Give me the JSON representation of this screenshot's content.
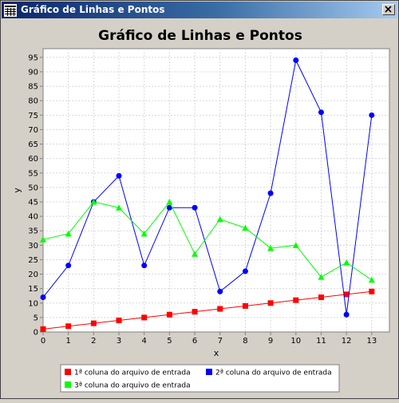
{
  "window": {
    "title": "Gráfico de Linhas e Pontos",
    "close_label": "X"
  },
  "chart_data": {
    "type": "line",
    "title": "Gráfico de Linhas e Pontos",
    "xlabel": "x",
    "ylabel": "y",
    "xlim": [
      0,
      13.7
    ],
    "ylim": [
      0,
      98
    ],
    "x_ticks": [
      "0",
      "1",
      "2",
      "3",
      "4",
      "5",
      "6",
      "7",
      "8",
      "9",
      "10",
      "11",
      "12",
      "13"
    ],
    "y_ticks": [
      "0",
      "5",
      "10",
      "15",
      "20",
      "25",
      "30",
      "35",
      "40",
      "45",
      "50",
      "55",
      "60",
      "65",
      "70",
      "75",
      "80",
      "85",
      "90",
      "95"
    ],
    "grid": true,
    "legend_position": "bottom",
    "series": [
      {
        "name": "1ª coluna do arquivo de entrada",
        "color": "#ff0000",
        "marker": "square",
        "x": [
          0,
          1,
          2,
          3,
          4,
          5,
          6,
          7,
          8,
          9,
          10,
          11,
          12,
          13
        ],
        "y": [
          1,
          2,
          3,
          4,
          5,
          6,
          7,
          8,
          9,
          10,
          11,
          12,
          13,
          14
        ]
      },
      {
        "name": "2ª coluna do arquivo de entrada",
        "color": "#0000ff",
        "marker": "circle",
        "x": [
          0,
          1,
          2,
          3,
          4,
          5,
          6,
          7,
          8,
          9,
          10,
          11,
          12,
          13
        ],
        "y": [
          12,
          23,
          45,
          54,
          23,
          43,
          43,
          14,
          21,
          48,
          94,
          76,
          6,
          75
        ]
      },
      {
        "name": "3ª coluna do arquivo de entrada",
        "color": "#00ff00",
        "marker": "triangle",
        "x": [
          0,
          1,
          2,
          3,
          4,
          5,
          6,
          7,
          8,
          9,
          10,
          11,
          12,
          13
        ],
        "y": [
          32,
          34,
          45,
          43,
          34,
          45,
          27,
          39,
          36,
          29,
          30,
          19,
          24,
          18
        ]
      }
    ]
  }
}
